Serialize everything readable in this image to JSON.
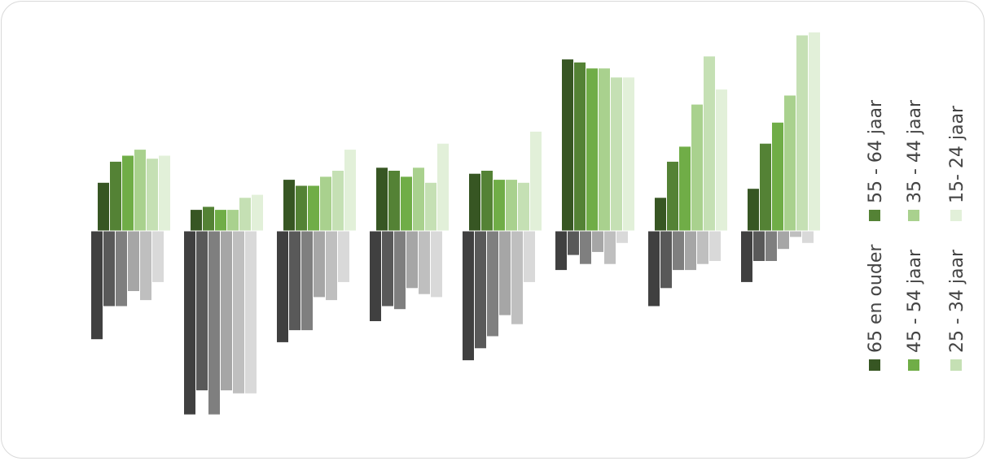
{
  "chart_data": {
    "type": "bar",
    "categories": [
      "",
      "",
      "",
      "",
      "",
      "",
      "",
      ""
    ],
    "zero_line": true,
    "legend": {
      "placement": "right",
      "orientation": "vertical-rotated",
      "items": [
        {
          "label": "65 en ouder",
          "color": "#375623"
        },
        {
          "label": "55 - 64 jaar",
          "color": "#548235"
        },
        {
          "label": "45 - 54 jaar",
          "color": "#70ad47"
        },
        {
          "label": "35 - 44 jaar",
          "color": "#a9d18e"
        },
        {
          "label": "25 - 34 jaar",
          "color": "#c5e0b4"
        },
        {
          "label": "15- 24 jaar",
          "color": "#e2f0d9"
        }
      ]
    },
    "positive_series": [
      {
        "name": "65 en ouder",
        "color": "#375623",
        "values": [
          16,
          7,
          17,
          21,
          19,
          57,
          11,
          14
        ]
      },
      {
        "name": "55 - 64 jaar",
        "color": "#548235",
        "values": [
          23,
          8,
          15,
          20,
          20,
          56,
          23,
          29
        ]
      },
      {
        "name": "45 - 54 jaar",
        "color": "#70ad47",
        "values": [
          25,
          7,
          15,
          18,
          17,
          54,
          28,
          36
        ]
      },
      {
        "name": "35 - 44 jaar",
        "color": "#a9d18e",
        "values": [
          27,
          7,
          18,
          21,
          17,
          54,
          42,
          45
        ]
      },
      {
        "name": "25 - 34 jaar",
        "color": "#c5e0b4",
        "values": [
          24,
          11,
          20,
          16,
          16,
          51,
          58,
          65
        ]
      },
      {
        "name": "15- 24 jaar",
        "color": "#e2f0d9",
        "values": [
          25,
          12,
          27,
          29,
          33,
          51,
          47,
          66
        ]
      }
    ],
    "negative_series": [
      {
        "color": "#404040",
        "values": [
          -36,
          -61,
          -37,
          -30,
          -43,
          -13,
          -25,
          -17
        ]
      },
      {
        "color": "#595959",
        "values": [
          -25,
          -53,
          -33,
          -25,
          -39,
          -8,
          -19,
          -10
        ]
      },
      {
        "color": "#7f7f7f",
        "values": [
          -25,
          -61,
          -33,
          -26,
          -35,
          -11,
          -13,
          -10
        ]
      },
      {
        "color": "#a6a6a6",
        "values": [
          -20,
          -53,
          -22,
          -19,
          -28,
          -7,
          -13,
          -6
        ]
      },
      {
        "color": "#bfbfbf",
        "values": [
          -23,
          -54,
          -23,
          -21,
          -31,
          -11,
          -11,
          -2
        ]
      },
      {
        "color": "#d9d9d9",
        "values": [
          -17,
          -54,
          -17,
          -22,
          -17,
          -4,
          -10,
          -4
        ]
      }
    ]
  }
}
